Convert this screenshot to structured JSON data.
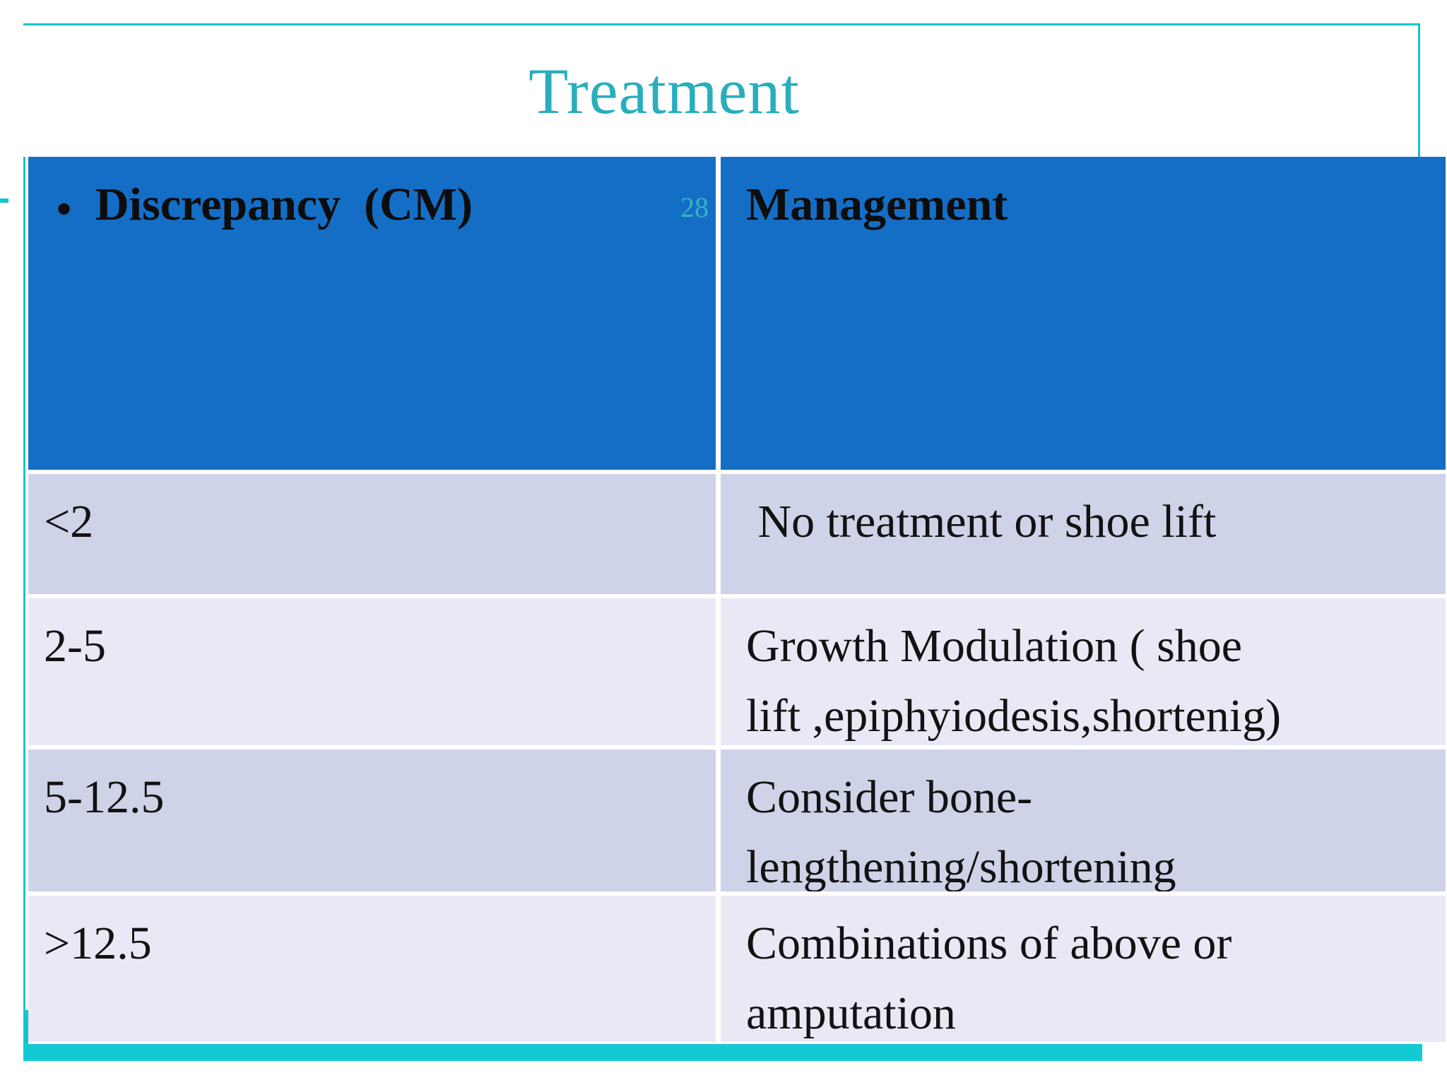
{
  "slide": {
    "title": "Treatment",
    "page_number": "28",
    "table": {
      "bullet": "•",
      "headers": [
        "Discrepancy  (CM)",
        "Management"
      ],
      "rows": [
        {
          "discrepancy": "<2",
          "management": " No treatment or shoe lift"
        },
        {
          "discrepancy": "2-5",
          "management": "Growth Modulation ( shoe\nlift ,epiphyiodesis,shortenig)"
        },
        {
          "discrepancy": "5-12.5",
          "management": "Consider bone-\nlengthening/shortening"
        },
        {
          "discrepancy": ">12.5",
          "management": "Combinations of above or\namputation"
        }
      ]
    },
    "colors": {
      "accent_teal": "#14C3CE",
      "bottom_bar_teal": "#12CAD3",
      "title_text_teal": "#28AEBC",
      "header_blue": "#146EC6",
      "row_dark": "#CED3E7",
      "row_light": "#E8E9F4",
      "body_text": "#121212"
    }
  }
}
